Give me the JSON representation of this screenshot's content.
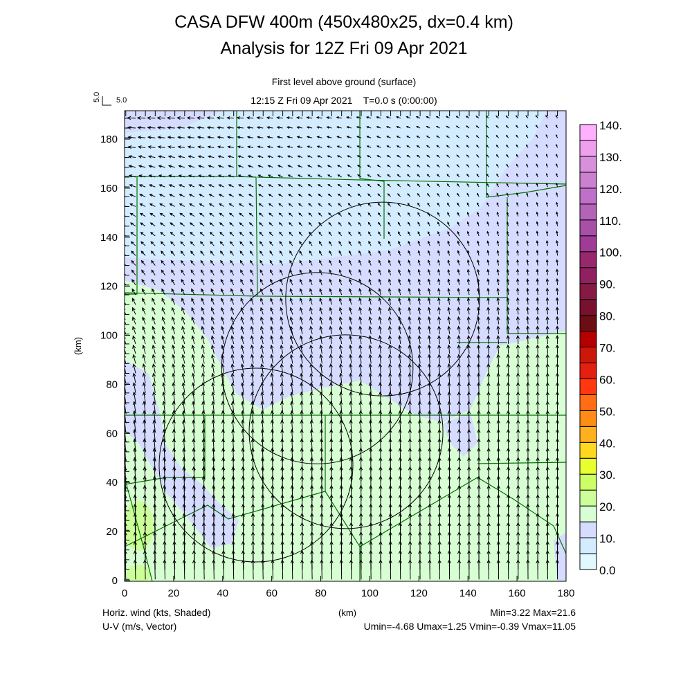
{
  "chart_data": {
    "type": "heatmap",
    "title": "CASA DFW 400m (450x480x25, dx=0.4 km)",
    "subtitle": "Analysis for 12Z Fri 09 Apr 2021",
    "level_label": "First level above ground (surface)",
    "time_label": "12:15 Z Fri 09 Apr 2021    T=0.0 s (0:00:00)",
    "xlabel": "(km)",
    "ylabel": "(km)",
    "xlim": [
      0,
      180
    ],
    "ylim": [
      0,
      192
    ],
    "xticks": [
      "0",
      "20",
      "40",
      "60",
      "80",
      "100",
      "120",
      "140",
      "160",
      "180"
    ],
    "yticks": [
      "0",
      "20",
      "40",
      "60",
      "80",
      "100",
      "120",
      "140",
      "160",
      "180"
    ],
    "reference_vector": {
      "value": 5.0,
      "label_x": "5.0",
      "label_y": "5.0"
    },
    "shaded_field": "Horiz. wind (kts, Shaded)",
    "vector_field": "U-V (m/s, Vector)",
    "stats": {
      "minmax": "Min=3.22 Max=21.6",
      "uv": "Umin=-4.68 Umax=1.25 Vmin=-0.39 Vmax=11.05",
      "min": 3.22,
      "max": 21.6,
      "umin": -4.68,
      "umax": 1.25,
      "vmin": -0.39,
      "vmax": 11.05
    },
    "colorbar": {
      "levels": [
        0,
        5,
        10,
        15,
        20,
        25,
        30,
        35,
        40,
        45,
        50,
        55,
        60,
        65,
        70,
        75,
        80,
        85,
        90,
        95,
        100,
        105,
        110,
        115,
        120,
        125,
        130,
        135,
        140
      ],
      "labels": [
        "0.0",
        "10.",
        "20.",
        "30.",
        "40.",
        "50.",
        "60.",
        "70.",
        "80.",
        "90.",
        "100.",
        "110.",
        "120.",
        "130.",
        "140."
      ],
      "colors": [
        "#e2f8ff",
        "#d4ecff",
        "#d6dcff",
        "#d8ffd4",
        "#ccff99",
        "#ccff66",
        "#e8ff30",
        "#ffd820",
        "#ffb020",
        "#ff8c14",
        "#ff6e14",
        "#ff3810",
        "#e42010",
        "#cc1808",
        "#b40000",
        "#6c0c14",
        "#781030",
        "#861a44",
        "#902060",
        "#98286e",
        "#a03c98",
        "#a850a8",
        "#b464b8",
        "#c070c8",
        "#cc80d0",
        "#d890dc",
        "#eea0ec",
        "#ffb0ff"
      ]
    },
    "radar_rings_km": [
      {
        "x": 105.2,
        "y": 114.8,
        "r": 39.5
      },
      {
        "x": 78.6,
        "y": 86.6,
        "r": 39.0
      },
      {
        "x": 90.3,
        "y": 60.7,
        "r": 39.5
      },
      {
        "x": 53.6,
        "y": 47.1,
        "r": 39.5
      }
    ],
    "grid_spacing_km": 4
  }
}
